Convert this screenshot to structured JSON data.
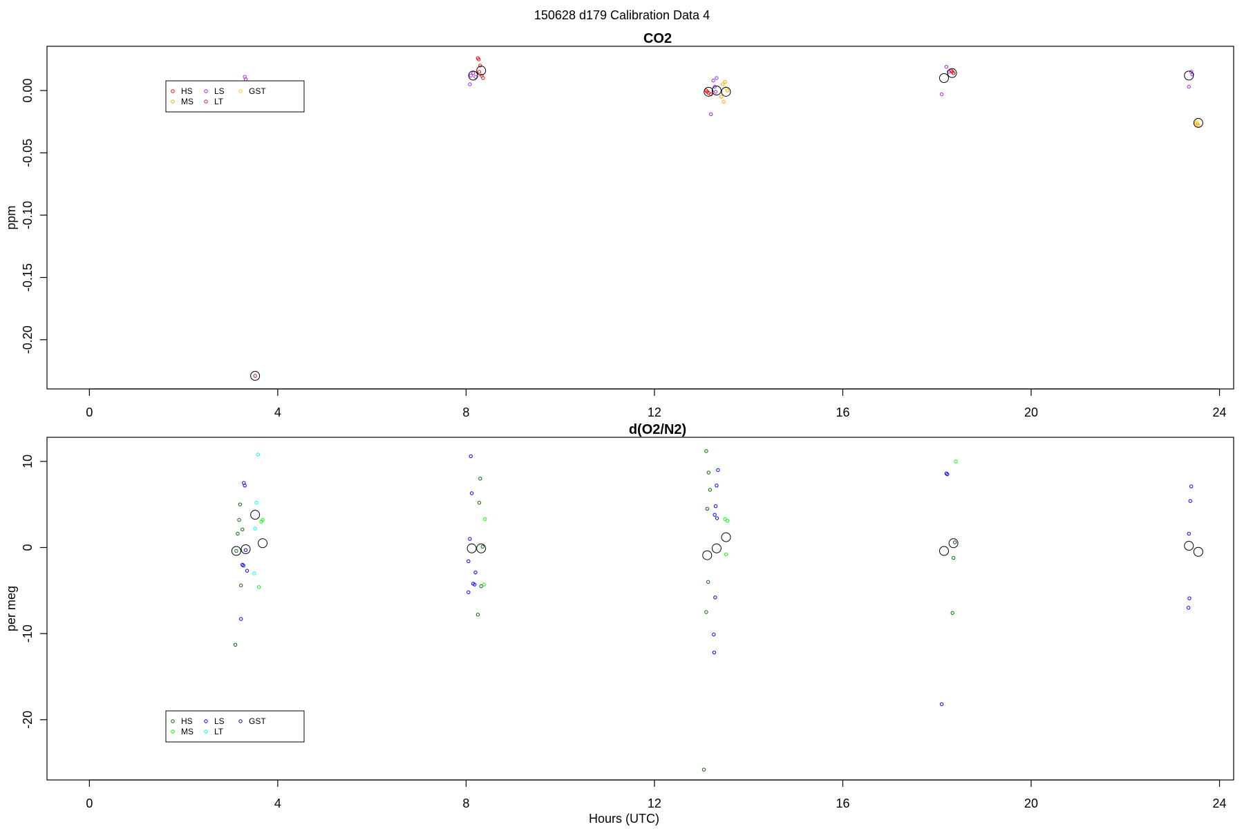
{
  "figure_title": "150628   d179   Calibration Data 4",
  "x_axis_title": "Hours (UTC)",
  "chart_data": [
    {
      "type": "scatter",
      "title": "CO2",
      "ylabel": "ppm",
      "xlabel": "",
      "xlim": [
        -0.9,
        24.3
      ],
      "ylim": [
        -0.2395,
        0.0355
      ],
      "xticks": [
        0,
        4,
        8,
        12,
        16,
        20,
        24
      ],
      "xtick_labels": [
        "0",
        "4",
        "8",
        "12",
        "16",
        "20",
        "24"
      ],
      "yticks": [
        0.0,
        -0.05,
        -0.1,
        -0.15,
        -0.2
      ],
      "ytick_labels": [
        "0.00",
        "-0.05",
        "-0.10",
        "-0.15",
        "-0.20"
      ],
      "grid": false,
      "legend_placement": "top-left",
      "legend": [
        {
          "label": "HS",
          "color": "#FF0000"
        },
        {
          "label": "MS",
          "color": "#FFA500"
        },
        {
          "label": "LS",
          "color": "#A020F0"
        },
        {
          "label": "LT",
          "color": "#B22222"
        },
        {
          "label": "GST",
          "color": "#FFD700"
        }
      ],
      "series": [
        {
          "name": "HS",
          "color": "#FF0000",
          "points": [
            [
              8.25,
              0.026
            ],
            [
              8.27,
              0.025
            ],
            [
              8.3,
              0.02
            ],
            [
              8.33,
              0.012
            ],
            [
              8.36,
              0.01
            ],
            [
              8.28,
              0.015
            ],
            [
              13.1,
              0.0
            ],
            [
              13.15,
              -0.002
            ],
            [
              13.2,
              -0.003
            ],
            [
              13.12,
              -0.001
            ],
            [
              18.3,
              0.016
            ],
            [
              18.35,
              0.014
            ],
            [
              18.32,
              0.015
            ]
          ]
        },
        {
          "name": "MS",
          "color": "#FFA500",
          "points": [
            [
              13.45,
              0.005
            ],
            [
              13.5,
              0.007
            ],
            [
              13.55,
              0.0
            ],
            [
              13.42,
              -0.005
            ],
            [
              13.47,
              -0.009
            ],
            [
              23.5,
              -0.026
            ],
            [
              23.55,
              -0.028
            ],
            [
              23.53,
              -0.027
            ]
          ]
        },
        {
          "name": "LS",
          "color": "#A020F0",
          "points": [
            [
              3.3,
              0.011
            ],
            [
              3.32,
              0.009
            ],
            [
              8.08,
              0.005
            ],
            [
              8.1,
              0.012
            ],
            [
              8.15,
              0.014
            ],
            [
              8.2,
              0.011
            ],
            [
              13.25,
              0.008
            ],
            [
              13.28,
              0.003
            ],
            [
              13.3,
              -0.001
            ],
            [
              13.2,
              -0.019
            ],
            [
              13.32,
              0.01
            ],
            [
              18.1,
              -0.003
            ],
            [
              18.2,
              0.019
            ],
            [
              18.25,
              0.015
            ],
            [
              23.35,
              0.003
            ],
            [
              23.4,
              0.015
            ],
            [
              23.42,
              0.013
            ]
          ]
        },
        {
          "name": "LT",
          "color": "#B22222",
          "points": [
            [
              3.52,
              -0.229
            ],
            [
              18.35,
              0.014
            ]
          ]
        },
        {
          "name": "GST",
          "color": "#FFD700",
          "points": [
            [
              13.52,
              0.002
            ],
            [
              23.52,
              -0.025
            ]
          ]
        }
      ],
      "means": [
        [
          3.52,
          -0.229
        ],
        [
          8.15,
          0.012
        ],
        [
          8.32,
          0.016
        ],
        [
          13.15,
          -0.001
        ],
        [
          13.32,
          0.0
        ],
        [
          13.52,
          -0.001
        ],
        [
          18.15,
          0.01
        ],
        [
          18.32,
          0.014
        ],
        [
          23.35,
          0.012
        ],
        [
          23.55,
          -0.026
        ]
      ]
    },
    {
      "type": "scatter",
      "title": "d(O2/N2)",
      "ylabel": "per meg",
      "xlabel": "Hours (UTC)",
      "xlim": [
        -0.9,
        24.3
      ],
      "ylim": [
        -27.0,
        12.8
      ],
      "xticks": [
        0,
        4,
        8,
        12,
        16,
        20,
        24
      ],
      "xtick_labels": [
        "0",
        "4",
        "8",
        "12",
        "16",
        "20",
        "24"
      ],
      "yticks": [
        10,
        0,
        -10,
        -20
      ],
      "ytick_labels": [
        "10",
        "0",
        "-10",
        "-20"
      ],
      "grid": false,
      "legend_placement": "bottom-left",
      "legend": [
        {
          "label": "HS",
          "color": "#006400"
        },
        {
          "label": "MS",
          "color": "#00FF00"
        },
        {
          "label": "LS",
          "color": "#0000FF"
        },
        {
          "label": "LT",
          "color": "#00FFFF"
        },
        {
          "label": "GST",
          "color": "#00008B"
        }
      ],
      "series": [
        {
          "name": "HS",
          "color": "#006400",
          "points": [
            [
              3.1,
              -11.3
            ],
            [
              3.15,
              1.6
            ],
            [
              3.18,
              3.2
            ],
            [
              3.2,
              5.0
            ],
            [
              3.22,
              -4.4
            ],
            [
              3.25,
              2.1
            ],
            [
              3.12,
              -0.4
            ],
            [
              8.3,
              8.0
            ],
            [
              8.28,
              5.2
            ],
            [
              8.35,
              0.1
            ],
            [
              8.32,
              -4.5
            ],
            [
              8.25,
              -7.8
            ],
            [
              13.1,
              11.2
            ],
            [
              13.12,
              4.5
            ],
            [
              13.15,
              8.7
            ],
            [
              13.18,
              6.7
            ],
            [
              13.14,
              -4.0
            ],
            [
              13.1,
              -7.5
            ],
            [
              13.05,
              -25.8
            ],
            [
              18.35,
              -1.2
            ],
            [
              18.38,
              0.6
            ],
            [
              18.33,
              -7.6
            ]
          ]
        },
        {
          "name": "MS",
          "color": "#00FF00",
          "points": [
            [
              3.65,
              3.0
            ],
            [
              3.68,
              3.2
            ],
            [
              3.6,
              -4.6
            ],
            [
              8.4,
              3.3
            ],
            [
              8.38,
              -4.3
            ],
            [
              13.5,
              3.3
            ],
            [
              13.55,
              3.1
            ],
            [
              13.52,
              -0.8
            ],
            [
              18.4,
              10.0
            ]
          ]
        },
        {
          "name": "LS",
          "color": "#0000FF",
          "points": [
            [
              3.28,
              7.5
            ],
            [
              3.3,
              7.2
            ],
            [
              3.32,
              -0.3
            ],
            [
              3.25,
              -2.0
            ],
            [
              3.27,
              -2.1
            ],
            [
              3.35,
              -2.7
            ],
            [
              3.22,
              -8.3
            ],
            [
              8.1,
              10.6
            ],
            [
              8.12,
              6.3
            ],
            [
              8.08,
              1.0
            ],
            [
              8.05,
              -1.6
            ],
            [
              8.2,
              -2.9
            ],
            [
              8.15,
              -4.2
            ],
            [
              8.18,
              -4.3
            ],
            [
              8.05,
              -5.2
            ],
            [
              13.35,
              9.0
            ],
            [
              13.32,
              7.2
            ],
            [
              13.3,
              4.8
            ],
            [
              13.28,
              3.8
            ],
            [
              13.33,
              3.4
            ],
            [
              13.29,
              -5.8
            ],
            [
              13.26,
              -10.1
            ],
            [
              13.27,
              -12.2
            ],
            [
              18.2,
              8.6
            ],
            [
              18.22,
              8.5
            ],
            [
              18.1,
              -18.2
            ],
            [
              23.4,
              7.1
            ],
            [
              23.38,
              5.4
            ],
            [
              23.35,
              1.6
            ],
            [
              23.36,
              -5.9
            ],
            [
              23.34,
              -7.0
            ]
          ]
        },
        {
          "name": "LT",
          "color": "#00FFFF",
          "points": [
            [
              3.58,
              10.8
            ],
            [
              3.55,
              5.2
            ],
            [
              3.52,
              2.2
            ],
            [
              3.5,
              -3.0
            ]
          ]
        },
        {
          "name": "GST",
          "color": "#00008B",
          "points": []
        }
      ],
      "means": [
        [
          3.12,
          -0.4
        ],
        [
          3.32,
          -0.2
        ],
        [
          3.52,
          3.8
        ],
        [
          3.68,
          0.5
        ],
        [
          8.12,
          -0.1
        ],
        [
          8.32,
          -0.1
        ],
        [
          13.12,
          -0.9
        ],
        [
          13.32,
          -0.1
        ],
        [
          13.52,
          1.2
        ],
        [
          18.15,
          -0.4
        ],
        [
          18.35,
          0.5
        ],
        [
          23.35,
          0.2
        ],
        [
          23.55,
          -0.5
        ]
      ]
    }
  ]
}
